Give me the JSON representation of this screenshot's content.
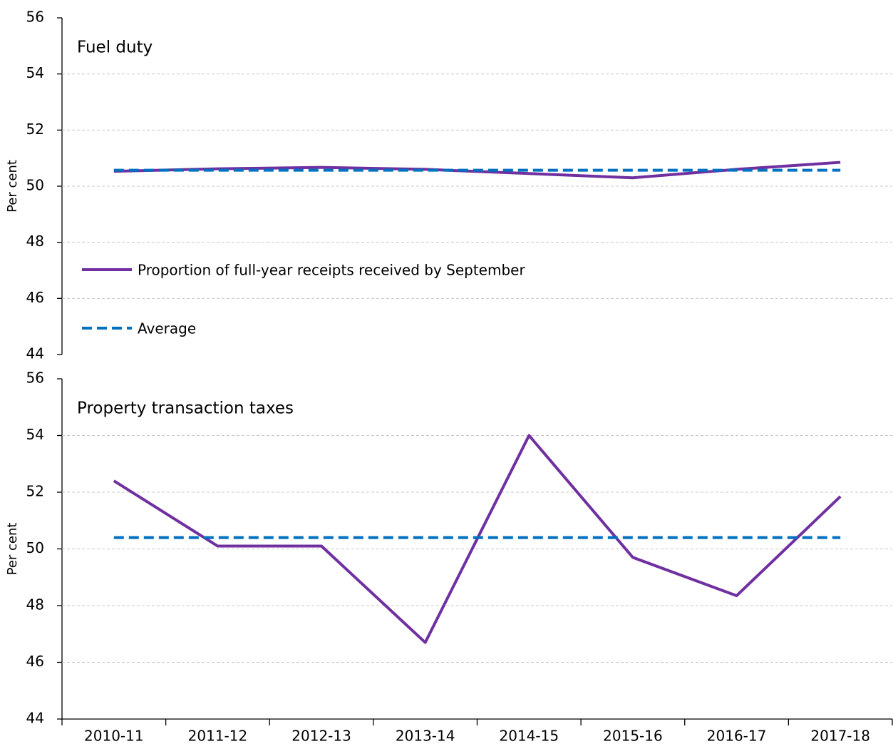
{
  "chart_data": [
    {
      "type": "line",
      "title": "Fuel duty",
      "y_label": "Per cent",
      "series": [
        {
          "name": "Proportion of full-year receipts received by September",
          "color": "#7030a0",
          "dashed": false,
          "values": [
            50.53,
            50.62,
            50.67,
            50.6,
            50.45,
            50.3,
            50.6,
            50.85
          ]
        },
        {
          "name": "Average",
          "color": "#0070c0",
          "dashed": true,
          "values": [
            50.57,
            50.57,
            50.57,
            50.57,
            50.57,
            50.57,
            50.57,
            50.57
          ]
        }
      ],
      "ylim": [
        44,
        56
      ],
      "yticks": [
        44,
        46,
        48,
        50,
        52,
        54,
        56
      ],
      "grid": true,
      "legend": "left"
    },
    {
      "type": "line",
      "title": "Property transaction taxes",
      "y_label": "Per cent",
      "categories": [
        "2010-11",
        "2011-12",
        "2012-13",
        "2013-14",
        "2014-15",
        "2015-16",
        "2016-17",
        "2017-18"
      ],
      "series": [
        {
          "color": "#7030a0",
          "dashed": false,
          "values": [
            52.4,
            50.1,
            50.1,
            46.7,
            54.0,
            49.7,
            48.35,
            51.85
          ]
        },
        {
          "color": "#0070c0",
          "dashed": true,
          "values": [
            50.4,
            50.4,
            50.4,
            50.4,
            50.4,
            50.4,
            50.4,
            50.4
          ]
        }
      ],
      "ylim": [
        44,
        56
      ],
      "yticks": [
        44,
        46,
        48,
        50,
        52,
        54,
        56
      ],
      "grid": true
    }
  ]
}
